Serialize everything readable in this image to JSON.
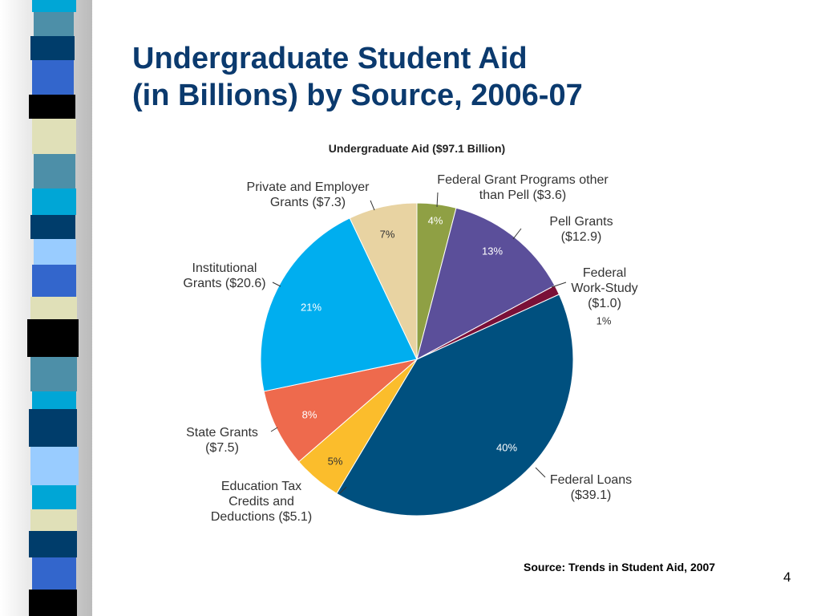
{
  "slide_title": "Undergraduate Student Aid\n(in Billions) by Source, 2006-07",
  "chart_data": {
    "type": "pie",
    "title": "Undergraduate Aid ($97.1 Billion)",
    "categories": [
      "Federal Grant Programs other\nthan Pell ($3.6)",
      "Pell Grants\n($12.9)",
      "Federal\nWork-Study\n($1.0)",
      "Federal Loans\n($39.1)",
      "Education Tax\nCredits and\nDeductions ($5.1)",
      "State Grants\n($7.5)",
      "Institutional\nGrants ($20.6)",
      "Private and Employer\nGrants ($7.3)"
    ],
    "values": [
      4,
      13,
      1,
      40,
      5,
      8,
      21,
      7
    ],
    "value_labels": [
      "4%",
      "13%",
      "1%",
      "40%",
      "5%",
      "8%",
      "21%",
      "7%"
    ],
    "colors": [
      "#8fa044",
      "#5b4f9a",
      "#7a1038",
      "#00507f",
      "#fbbd2c",
      "#ee6a4d",
      "#00aeef",
      "#e8d3a2"
    ]
  },
  "source": "Source: Trends in Student Aid, 2007",
  "page_number": "4"
}
